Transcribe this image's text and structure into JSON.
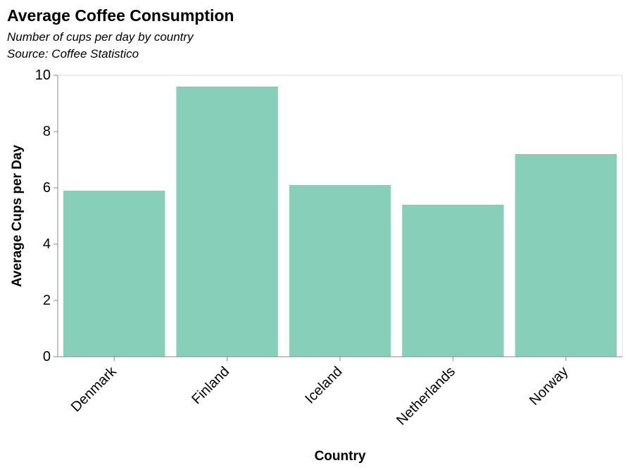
{
  "chart_data": {
    "type": "bar",
    "title": "Average Coffee Consumption",
    "subtitle": [
      "Number of cups per day by country",
      "Source: Coffee Statistico"
    ],
    "xlabel": "Country",
    "ylabel": "Average Cups per Day",
    "categories": [
      "Denmark",
      "Finland",
      "Iceland",
      "Netherlands",
      "Norway"
    ],
    "values": [
      5.9,
      9.6,
      6.1,
      5.4,
      7.2
    ],
    "ylim": [
      0,
      10
    ],
    "yticks": [
      0,
      2,
      4,
      6,
      8,
      10
    ],
    "bar_color": "#88cfb9",
    "grid": false,
    "legend": "none"
  }
}
